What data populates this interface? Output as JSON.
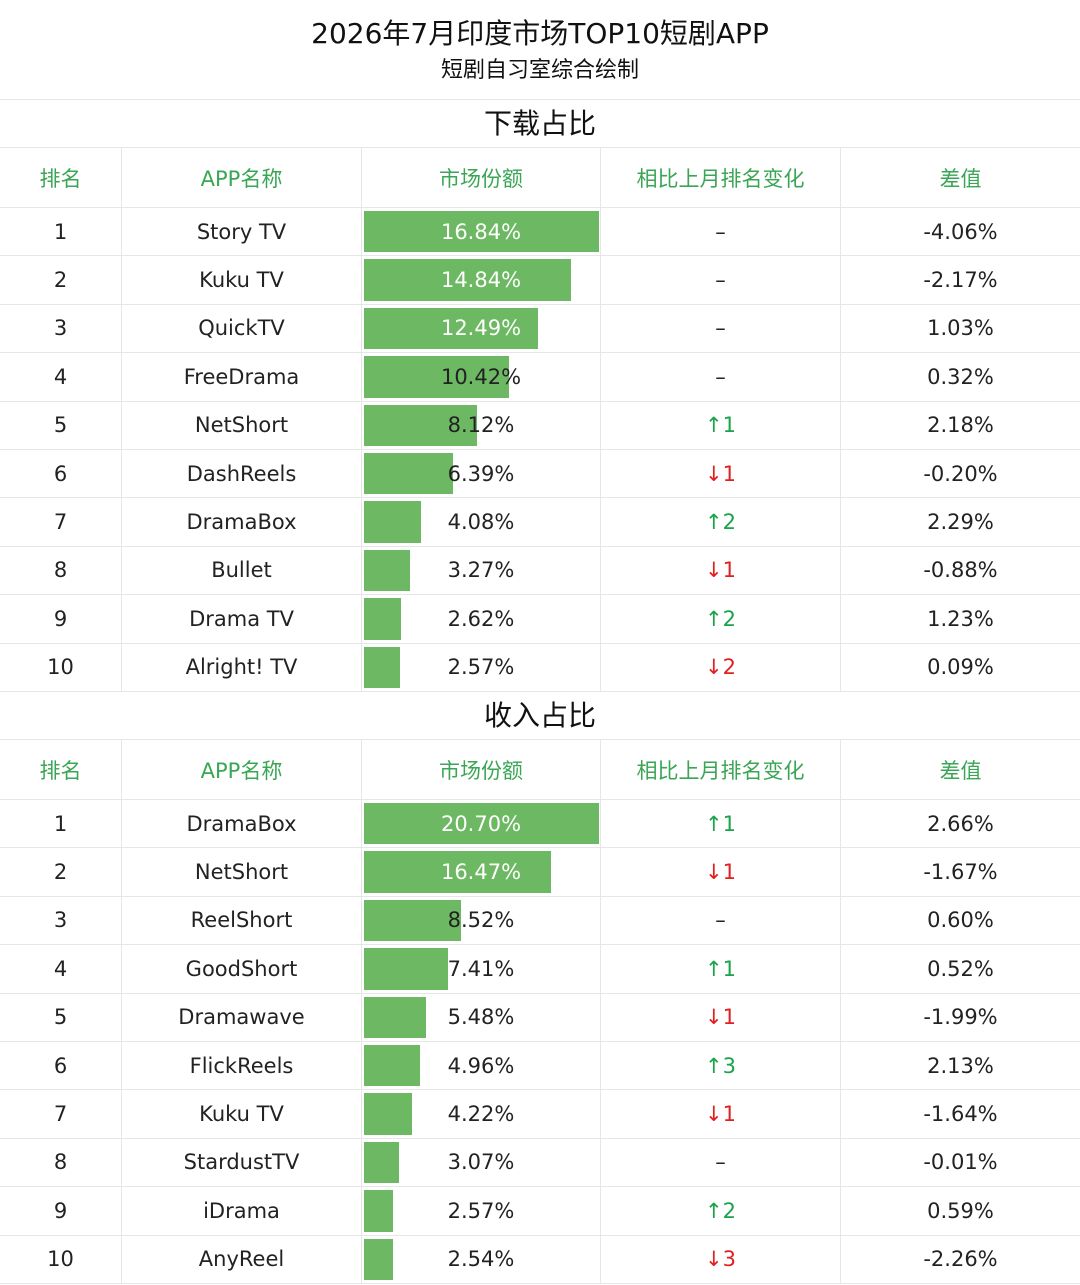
{
  "title": "2026年7月印度市场TOP10短剧APP",
  "subtitle": "短剧自习室综合绘制",
  "columns": [
    "排名",
    "APP名称",
    "市场份额",
    "相比上月排名变化",
    "差值"
  ],
  "colors": {
    "header_text": "#3aa655",
    "bar": "#6db862",
    "up": "#1aa34a",
    "down": "#e02020"
  },
  "chart_data": [
    {
      "type": "table",
      "title": "下载占比",
      "max_share": 16.84,
      "rows": [
        {
          "rank": "1",
          "app": "Story TV",
          "share": 16.84,
          "share_label": "16.84%",
          "change": "–",
          "diff": "-4.06%"
        },
        {
          "rank": "2",
          "app": "Kuku TV",
          "share": 14.84,
          "share_label": "14.84%",
          "change": "–",
          "diff": "-2.17%"
        },
        {
          "rank": "3",
          "app": "QuickTV",
          "share": 12.49,
          "share_label": "12.49%",
          "change": "–",
          "diff": "1.03%"
        },
        {
          "rank": "4",
          "app": "FreeDrama",
          "share": 10.42,
          "share_label": "10.42%",
          "change": "–",
          "diff": "0.32%"
        },
        {
          "rank": "5",
          "app": "NetShort",
          "share": 8.12,
          "share_label": "8.12%",
          "change": "↑1",
          "diff": "2.18%"
        },
        {
          "rank": "6",
          "app": "DashReels",
          "share": 6.39,
          "share_label": "6.39%",
          "change": "↓1",
          "diff": "-0.20%"
        },
        {
          "rank": "7",
          "app": "DramaBox",
          "share": 4.08,
          "share_label": "4.08%",
          "change": "↑2",
          "diff": "2.29%"
        },
        {
          "rank": "8",
          "app": "Bullet",
          "share": 3.27,
          "share_label": "3.27%",
          "change": "↓1",
          "diff": "-0.88%"
        },
        {
          "rank": "9",
          "app": "Drama TV",
          "share": 2.62,
          "share_label": "2.62%",
          "change": "↑2",
          "diff": "1.23%"
        },
        {
          "rank": "10",
          "app": "Alright! TV",
          "share": 2.57,
          "share_label": "2.57%",
          "change": "↓2",
          "diff": "0.09%"
        }
      ]
    },
    {
      "type": "table",
      "title": "收入占比",
      "max_share": 20.7,
      "rows": [
        {
          "rank": "1",
          "app": "DramaBox",
          "share": 20.7,
          "share_label": "20.70%",
          "change": "↑1",
          "diff": "2.66%"
        },
        {
          "rank": "2",
          "app": "NetShort",
          "share": 16.47,
          "share_label": "16.47%",
          "change": "↓1",
          "diff": "-1.67%"
        },
        {
          "rank": "3",
          "app": "ReelShort",
          "share": 8.52,
          "share_label": "8.52%",
          "change": "–",
          "diff": "0.60%"
        },
        {
          "rank": "4",
          "app": "GoodShort",
          "share": 7.41,
          "share_label": "7.41%",
          "change": "↑1",
          "diff": "0.52%"
        },
        {
          "rank": "5",
          "app": "Dramawave",
          "share": 5.48,
          "share_label": "5.48%",
          "change": "↓1",
          "diff": "-1.99%"
        },
        {
          "rank": "6",
          "app": "FlickReels",
          "share": 4.96,
          "share_label": "4.96%",
          "change": "↑3",
          "diff": "2.13%"
        },
        {
          "rank": "7",
          "app": "Kuku TV",
          "share": 4.22,
          "share_label": "4.22%",
          "change": "↓1",
          "diff": "-1.64%"
        },
        {
          "rank": "8",
          "app": "StardustTV",
          "share": 3.07,
          "share_label": "3.07%",
          "change": "–",
          "diff": "-0.01%"
        },
        {
          "rank": "9",
          "app": "iDrama",
          "share": 2.57,
          "share_label": "2.57%",
          "change": "↑2",
          "diff": "0.59%"
        },
        {
          "rank": "10",
          "app": "AnyReel",
          "share": 2.54,
          "share_label": "2.54%",
          "change": "↓3",
          "diff": "-2.26%"
        }
      ]
    }
  ]
}
